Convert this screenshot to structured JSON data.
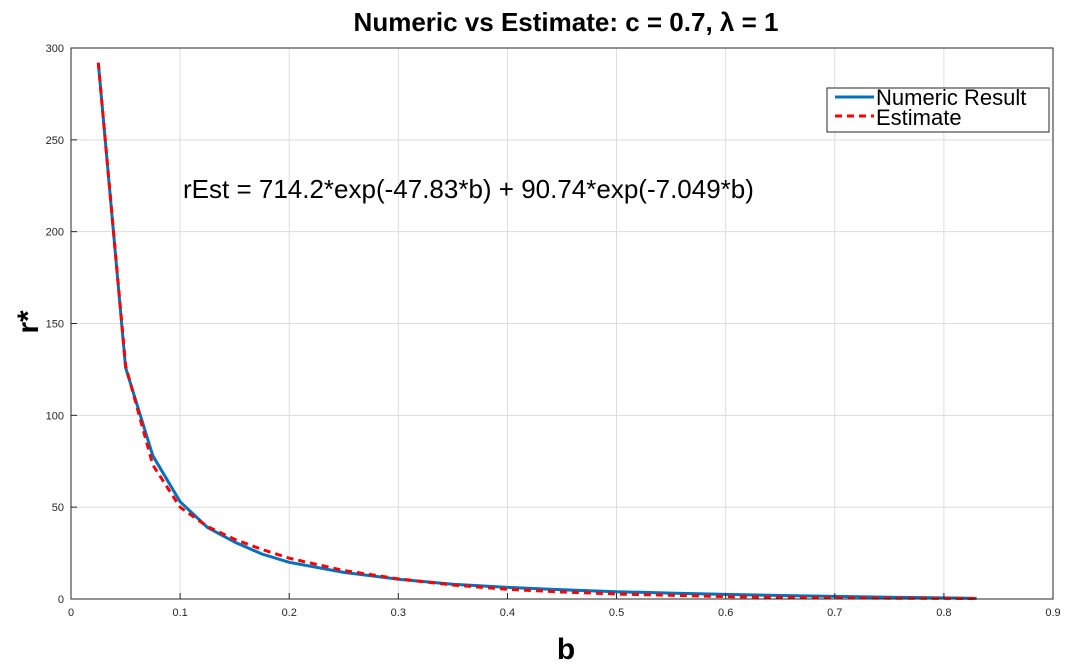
{
  "chart_data": {
    "type": "line",
    "title": "Numeric vs Estimate: c = 0.7, λ = 1",
    "xlabel": "b",
    "ylabel": "r*",
    "xlim": [
      0,
      0.9
    ],
    "ylim": [
      0,
      300
    ],
    "xticks": [
      0,
      0.1,
      0.2,
      0.3,
      0.4,
      0.5,
      0.6,
      0.7,
      0.8,
      0.9
    ],
    "xtick_labels": [
      "0",
      "0.1",
      "0.2",
      "0.3",
      "0.4",
      "0.5",
      "0.6",
      "0.7",
      "0.8",
      "0.9"
    ],
    "yticks": [
      0,
      50,
      100,
      150,
      200,
      250,
      300
    ],
    "ytick_labels": [
      "0",
      "50",
      "100",
      "150",
      "200",
      "250",
      "300"
    ],
    "grid": true,
    "legend_position": "top-right",
    "annotation": "rEst = 714.2*exp(-47.83*b) + 90.74*exp(-7.049*b)",
    "series": [
      {
        "name": "Numeric Result",
        "color": "#0072BD",
        "style": "solid",
        "x": [
          0.025,
          0.05,
          0.075,
          0.1,
          0.125,
          0.15,
          0.175,
          0.2,
          0.25,
          0.3,
          0.35,
          0.4,
          0.45,
          0.5,
          0.55,
          0.6,
          0.65,
          0.7,
          0.75,
          0.8,
          0.83
        ],
        "y": [
          292,
          126,
          78,
          53,
          39,
          31,
          24.5,
          20,
          14.5,
          10.8,
          8,
          6.3,
          5,
          4,
          3.2,
          2.5,
          1.9,
          1.4,
          1,
          0.6,
          0.3
        ]
      },
      {
        "name": "Estimate",
        "color": "#FF0000",
        "style": "dashed",
        "x": [
          0.025,
          0.05,
          0.075,
          0.1,
          0.125,
          0.15,
          0.175,
          0.2,
          0.25,
          0.3,
          0.35,
          0.4,
          0.45,
          0.5,
          0.55,
          0.6,
          0.65,
          0.7,
          0.75,
          0.8,
          0.83
        ],
        "y": [
          292,
          127,
          73,
          50,
          39.5,
          32.5,
          27,
          22.2,
          15.5,
          11,
          7.6,
          5.3,
          3.8,
          2.7,
          2,
          1.3,
          0.95,
          0.65,
          0.45,
          0.3,
          0.25
        ]
      }
    ]
  }
}
